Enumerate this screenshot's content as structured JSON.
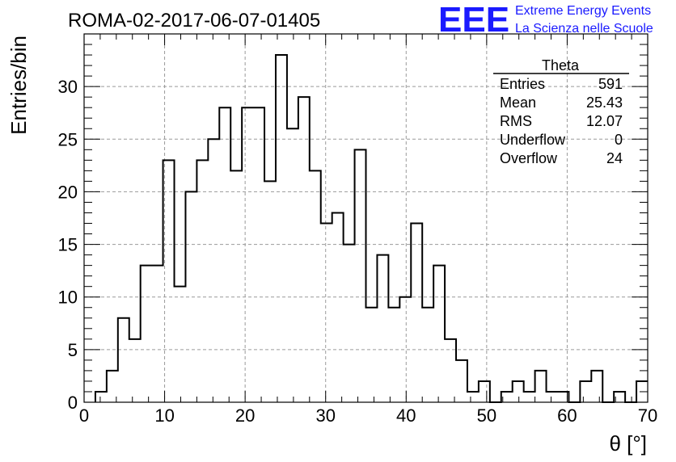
{
  "chart_data": {
    "type": "histogram",
    "title": "ROMA-02-2017-06-07-01405",
    "xlabel": "θ [°]",
    "ylabel": "Entries/bin",
    "xlim": [
      0,
      70
    ],
    "ylim": [
      0,
      35
    ],
    "xticks": [
      "0",
      "10",
      "20",
      "30",
      "40",
      "50",
      "60",
      "70"
    ],
    "yticks": [
      "0",
      "5",
      "10",
      "15",
      "20",
      "25",
      "30"
    ],
    "grid": true,
    "bin_width": 1.4,
    "x_start": 1.4,
    "values": [
      1,
      3,
      8,
      6,
      13,
      13,
      23,
      11,
      20,
      23,
      25,
      28,
      22,
      28,
      28,
      21,
      33,
      26,
      29,
      22,
      17,
      18,
      15,
      24,
      9,
      14,
      9,
      10,
      17,
      9,
      13,
      6,
      4,
      1,
      2,
      0,
      1,
      2,
      1,
      3,
      1,
      1,
      0,
      2,
      3,
      0,
      1,
      0,
      2
    ],
    "stats": {
      "name": "Theta",
      "rows": [
        {
          "label": "Entries",
          "value": "591"
        },
        {
          "label": "Mean",
          "value": "25.43"
        },
        {
          "label": "RMS",
          "value": "12.07"
        },
        {
          "label": "Underflow",
          "value": "0"
        },
        {
          "label": "Overflow",
          "value": "24"
        }
      ]
    },
    "logo": {
      "mark": "EEE",
      "line1": "Extreme Energy Events",
      "line2": "La Scienza nelle Scuole",
      "color": "#1a1aff"
    }
  }
}
